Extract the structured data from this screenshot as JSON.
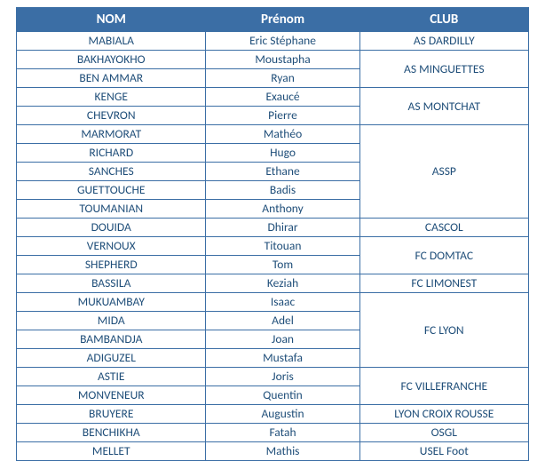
{
  "headers": {
    "nom": "NOM",
    "prenom": "Prénom",
    "club": "CLUB"
  },
  "rows": [
    {
      "nom": "MABIALA",
      "prenom": "Eric Stéphane"
    },
    {
      "nom": "BAKHAYOKHO",
      "prenom": "Moustapha"
    },
    {
      "nom": "BEN AMMAR",
      "prenom": "Ryan"
    },
    {
      "nom": "KENGE",
      "prenom": "Exaucé"
    },
    {
      "nom": "CHEVRON",
      "prenom": "Pierre"
    },
    {
      "nom": "MARMORAT",
      "prenom": "Mathéo"
    },
    {
      "nom": "RICHARD",
      "prenom": "Hugo"
    },
    {
      "nom": "SANCHES",
      "prenom": "Ethane"
    },
    {
      "nom": "GUETTOUCHE",
      "prenom": "Badis"
    },
    {
      "nom": "TOUMANIAN",
      "prenom": "Anthony"
    },
    {
      "nom": "DOUIDA",
      "prenom": "Dhirar"
    },
    {
      "nom": "VERNOUX",
      "prenom": "Titouan"
    },
    {
      "nom": "SHEPHERD",
      "prenom": "Tom"
    },
    {
      "nom": "BASSILA",
      "prenom": "Keziah"
    },
    {
      "nom": "MUKUAMBAY",
      "prenom": "Isaac"
    },
    {
      "nom": "MIDA",
      "prenom": "Adel"
    },
    {
      "nom": "BAMBANDJA",
      "prenom": "Joan"
    },
    {
      "nom": "ADIGUZEL",
      "prenom": "Mustafa"
    },
    {
      "nom": "ASTIE",
      "prenom": "Joris"
    },
    {
      "nom": "MONVENEUR",
      "prenom": "Quentin"
    },
    {
      "nom": "BRUYERE",
      "prenom": "Augustin"
    },
    {
      "nom": "BENCHIKHA",
      "prenom": "Fatah"
    },
    {
      "nom": "MELLET",
      "prenom": "Mathis"
    }
  ],
  "clubs": [
    {
      "name": "AS DARDILLY",
      "start": 0,
      "span": 1
    },
    {
      "name": "AS MINGUETTES",
      "start": 1,
      "span": 2
    },
    {
      "name": "AS MONTCHAT",
      "start": 3,
      "span": 2
    },
    {
      "name": "ASSP",
      "start": 5,
      "span": 5
    },
    {
      "name": "CASCOL",
      "start": 10,
      "span": 1
    },
    {
      "name": "FC DOMTAC",
      "start": 11,
      "span": 2
    },
    {
      "name": "FC LIMONEST",
      "start": 13,
      "span": 1
    },
    {
      "name": "FC LYON",
      "start": 14,
      "span": 4
    },
    {
      "name": "FC VILLEFRANCHE",
      "start": 18,
      "span": 2
    },
    {
      "name": "LYON CROIX ROUSSE",
      "start": 20,
      "span": 1
    },
    {
      "name": "OSGL",
      "start": 21,
      "span": 1
    },
    {
      "name": "USEL Foot",
      "start": 22,
      "span": 1
    }
  ],
  "colors": {
    "header_bg": "#3b6ea5",
    "header_text": "#ffffff",
    "cell_text": "#1f4e79",
    "border": "#3b6ea5",
    "background": "#ffffff"
  }
}
